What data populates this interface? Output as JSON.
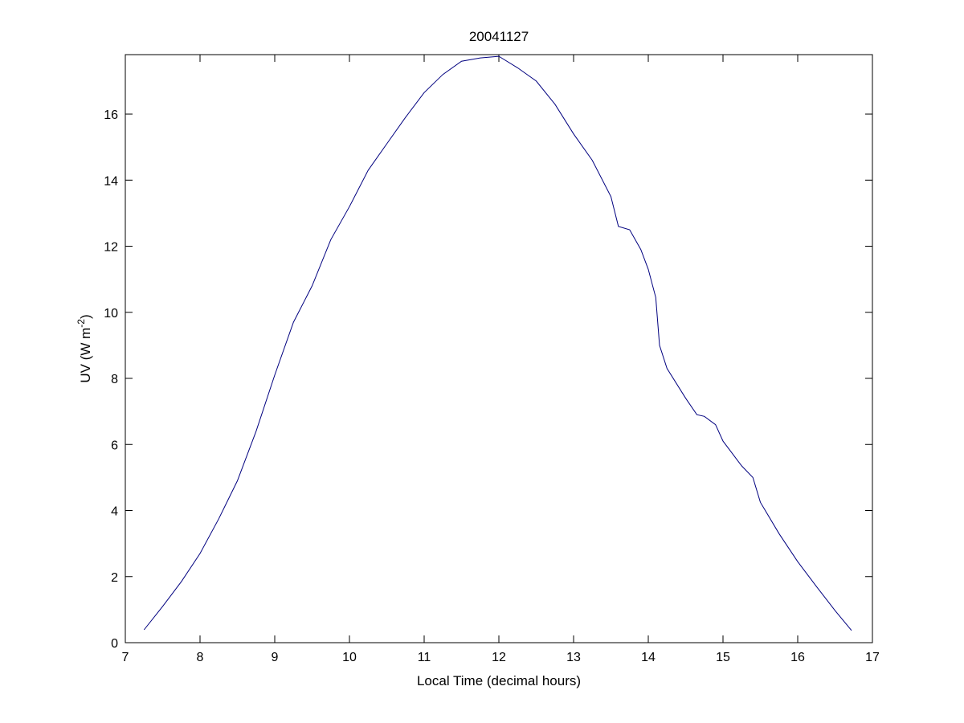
{
  "chart_data": {
    "type": "line",
    "title": "20041127",
    "xlabel": "Local Time (decimal hours)",
    "ylabel": "UV (W m",
    "ylabel_superscript": "-2",
    "ylabel_close": ")",
    "xlim": [
      7,
      17
    ],
    "ylim": [
      0,
      17.8
    ],
    "xticks": [
      7,
      8,
      9,
      10,
      11,
      12,
      13,
      14,
      15,
      16,
      17
    ],
    "yticks": [
      0,
      2,
      4,
      6,
      8,
      10,
      12,
      14,
      16
    ],
    "grid": false,
    "line_color": "#00007f",
    "series": [
      {
        "x": [
          7.25,
          7.5,
          7.75,
          8.0,
          8.25,
          8.5,
          8.75,
          9.0,
          9.25,
          9.5,
          9.75,
          10.0,
          10.25,
          10.5,
          10.75,
          11.0,
          11.25,
          11.5,
          11.75,
          12.0,
          12.25,
          12.5,
          12.75,
          13.0,
          13.25,
          13.5,
          13.6,
          13.75,
          13.9,
          14.0,
          14.1,
          14.15,
          14.25,
          14.5,
          14.65,
          14.75,
          14.9,
          15.0,
          15.25,
          15.4,
          15.5,
          15.75,
          16.0,
          16.25,
          16.5,
          16.72
        ],
        "y": [
          0.39,
          1.1,
          1.85,
          2.7,
          3.75,
          4.9,
          6.4,
          8.1,
          9.7,
          10.8,
          12.2,
          13.2,
          14.3,
          15.1,
          15.9,
          16.65,
          17.2,
          17.6,
          17.7,
          17.75,
          17.4,
          17.0,
          16.3,
          15.4,
          14.6,
          13.5,
          12.6,
          12.5,
          11.9,
          11.3,
          10.45,
          9.0,
          8.3,
          7.4,
          6.9,
          6.85,
          6.6,
          6.1,
          5.35,
          5.0,
          4.25,
          3.3,
          2.45,
          1.7,
          0.97,
          0.37
        ]
      }
    ]
  }
}
